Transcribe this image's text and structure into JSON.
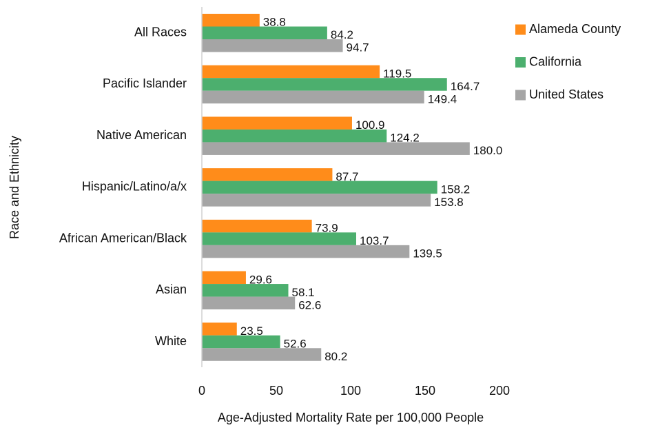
{
  "chart_data": {
    "type": "bar",
    "orientation": "horizontal",
    "x_label": "Age-Adjusted Mortality Rate per 100,000 People",
    "y_label": "Race and Ethnicity",
    "categories": [
      "All Races",
      "Pacific Islander",
      "Native American",
      "Hispanic/Latino/a/x",
      "African American/Black",
      "Asian",
      "White"
    ],
    "series": [
      {
        "name": "Alameda County",
        "color": "#ff8c1a",
        "values": [
          38.8,
          119.5,
          100.9,
          87.7,
          73.9,
          29.6,
          23.5
        ],
        "value_labels": [
          "38.8",
          "119.5",
          "100.9",
          "87.7",
          "73.9",
          "29.6",
          "23.5"
        ]
      },
      {
        "name": "California",
        "color": "#4caf6e",
        "values": [
          84.2,
          164.7,
          124.2,
          158.2,
          103.7,
          58.1,
          52.6
        ],
        "value_labels": [
          "84.2",
          "164.7",
          "124.2",
          "158.2",
          "103.7",
          "58.1",
          "52.6"
        ]
      },
      {
        "name": "United States",
        "color": "#a5a5a5",
        "values": [
          94.7,
          149.4,
          180,
          153.8,
          139.5,
          62.6,
          80.2
        ],
        "value_labels": [
          "94.7",
          "149.4",
          "180.0",
          "153.8",
          "139.5",
          "62.6",
          "80.2"
        ]
      }
    ],
    "xlim": [
      0,
      200
    ],
    "xticks": [
      0,
      50,
      100,
      150,
      200
    ],
    "grid": false,
    "legend": "top-right"
  }
}
